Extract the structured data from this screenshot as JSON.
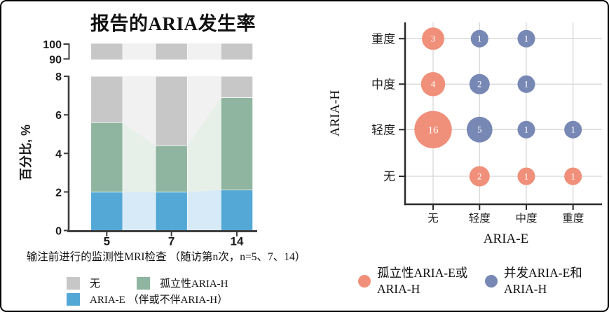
{
  "frame": {
    "background": "#ffffff",
    "border_color": "#000000"
  },
  "left_chart": {
    "title": "报告的ARIA发生率",
    "ylabel": "百分比, %",
    "xlabel": "输注前进行的监测性MRI检查 （随访第n次，n=5、7、14）",
    "legend": [
      {
        "label": "无",
        "color": "#c7c7c7"
      },
      {
        "label": "孤立性ARIA-H",
        "color": "#8fb5a1"
      },
      {
        "label": "ARIA-E （伴或不伴ARIA-H）",
        "color": "#53a8d6"
      }
    ]
  },
  "right_chart": {
    "ylabel": "ARIA-H",
    "xlabel": "ARIA-E",
    "legend": [
      {
        "line1": "孤立性ARIA-E或",
        "line2": "ARIA-H",
        "color": "#f0907a"
      },
      {
        "line1": "并发ARIA-E和",
        "line2": "ARIA-H",
        "color": "#7888b5"
      }
    ]
  },
  "chart_data": [
    {
      "type": "bar",
      "subtype": "stacked_bars_with_connectors_and_axis_break",
      "title": "报告的ARIA发生率",
      "xlabel": "输注前进行的监测性MRI检查 （随访第n次，n=5、7、14）",
      "ylabel": "百分比, %",
      "categories": [
        "5",
        "7",
        "14"
      ],
      "series": [
        {
          "name": "ARIA-E （伴或不伴ARIA-H）",
          "values": [
            2.0,
            2.0,
            2.1
          ],
          "color": "#53a8d6",
          "connector_color": "#d7eaf7"
        },
        {
          "name": "孤立性ARIA-H",
          "values": [
            3.6,
            2.4,
            4.8
          ],
          "color": "#8fb5a1",
          "connector_color": "#e7efe9"
        },
        {
          "name": "无",
          "values": [
            94.4,
            95.6,
            93.1
          ],
          "color": "#c7c7c7",
          "connector_color": "#f1f1f1"
        }
      ],
      "cumulative_tops": [
        [
          2.0,
          5.6
        ],
        [
          2.0,
          4.4
        ],
        [
          2.1,
          6.9
        ]
      ],
      "yticks_lower": [
        0,
        2,
        4,
        6,
        8
      ],
      "yticks_upper": [
        90,
        100
      ],
      "ylim_lower": [
        0,
        8
      ],
      "ylim_upper": [
        90,
        100
      ],
      "grid": false,
      "legend_position": "bottom"
    },
    {
      "type": "scatter",
      "subtype": "bubble_grid",
      "xlabel": "ARIA-E",
      "ylabel": "ARIA-H",
      "x_categories": [
        "无",
        "轻度",
        "中度",
        "重度"
      ],
      "y_categories": [
        "无",
        "轻度",
        "中度",
        "重度"
      ],
      "grid": true,
      "legend_position": "bottom",
      "series": [
        {
          "name": "孤立性ARIA-E或ARIA-H",
          "color": "#f0907a",
          "points": [
            {
              "x": "无",
              "y": "重度",
              "value": 3
            },
            {
              "x": "无",
              "y": "中度",
              "value": 4
            },
            {
              "x": "无",
              "y": "轻度",
              "value": 16
            },
            {
              "x": "轻度",
              "y": "无",
              "value": 2
            },
            {
              "x": "中度",
              "y": "无",
              "value": 1
            },
            {
              "x": "重度",
              "y": "无",
              "value": 1
            }
          ]
        },
        {
          "name": "并发ARIA-E和ARIA-H",
          "color": "#7888b5",
          "points": [
            {
              "x": "轻度",
              "y": "重度",
              "value": 1
            },
            {
              "x": "中度",
              "y": "重度",
              "value": 1
            },
            {
              "x": "轻度",
              "y": "中度",
              "value": 2
            },
            {
              "x": "中度",
              "y": "中度",
              "value": 1
            },
            {
              "x": "轻度",
              "y": "轻度",
              "value": 5
            },
            {
              "x": "中度",
              "y": "轻度",
              "value": 1
            },
            {
              "x": "重度",
              "y": "轻度",
              "value": 1
            }
          ]
        }
      ]
    }
  ]
}
